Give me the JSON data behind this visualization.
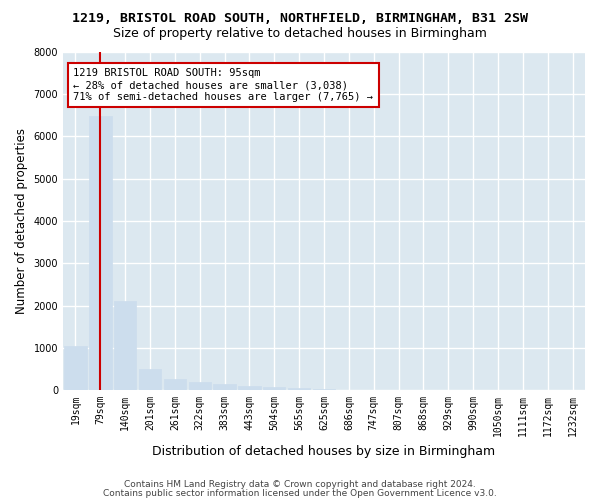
{
  "title": "1219, BRISTOL ROAD SOUTH, NORTHFIELD, BIRMINGHAM, B31 2SW",
  "subtitle": "Size of property relative to detached houses in Birmingham",
  "xlabel": "Distribution of detached houses by size in Birmingham",
  "ylabel": "Number of detached properties",
  "footer_line1": "Contains HM Land Registry data © Crown copyright and database right 2024.",
  "footer_line2": "Contains public sector information licensed under the Open Government Licence v3.0.",
  "annotation_line1": "1219 BRISTOL ROAD SOUTH: 95sqm",
  "annotation_line2": "← 28% of detached houses are smaller (3,038)",
  "annotation_line3": "71% of semi-detached houses are larger (7,765) →",
  "bar_color": "#ccdded",
  "redline_color": "#cc0000",
  "annotation_border_color": "#cc0000",
  "background_color": "#ffffff",
  "grid_color": "#dce8f0",
  "ylim": [
    0,
    8000
  ],
  "yticks": [
    0,
    1000,
    2000,
    3000,
    4000,
    5000,
    6000,
    7000,
    8000
  ],
  "categories": [
    "19sqm",
    "79sqm",
    "140sqm",
    "201sqm",
    "261sqm",
    "322sqm",
    "383sqm",
    "443sqm",
    "504sqm",
    "565sqm",
    "625sqm",
    "686sqm",
    "747sqm",
    "807sqm",
    "868sqm",
    "929sqm",
    "990sqm",
    "1050sqm",
    "1111sqm",
    "1172sqm",
    "1232sqm"
  ],
  "values": [
    1050,
    6480,
    2100,
    490,
    270,
    185,
    135,
    90,
    65,
    45,
    25,
    14,
    9,
    7,
    4,
    3,
    2,
    2,
    1,
    1,
    0
  ],
  "property_bar_index": 1,
  "title_fontsize": 9.5,
  "subtitle_fontsize": 9,
  "tick_fontsize": 7,
  "ylabel_fontsize": 8.5,
  "xlabel_fontsize": 9,
  "annotation_fontsize": 7.5,
  "footer_fontsize": 6.5
}
